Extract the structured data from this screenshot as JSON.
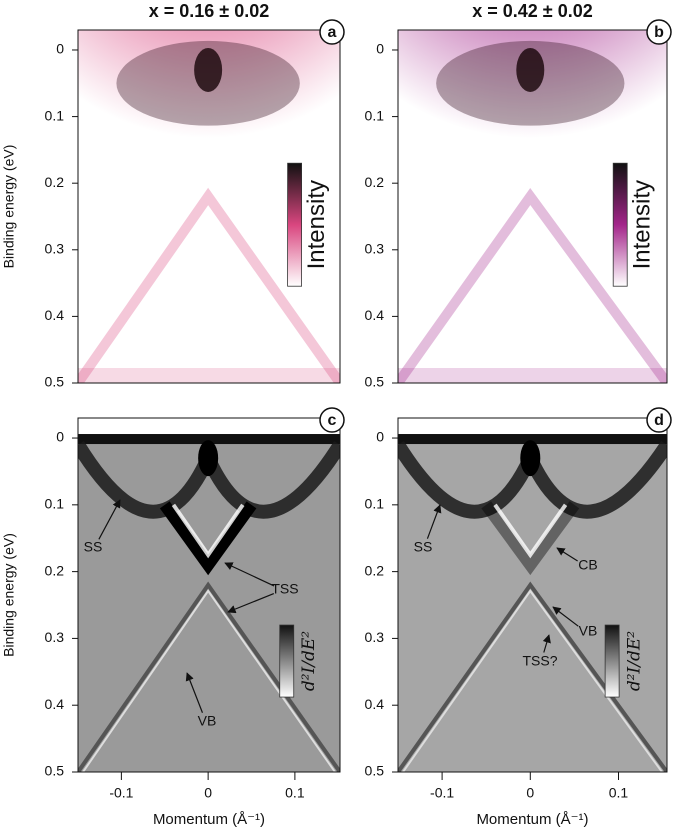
{
  "chart_data": [
    {
      "type": "image",
      "panel_label": "a",
      "title": "x = 0.16 ± 0.02",
      "ylabel": "Binding energy (eV)",
      "color": "#d9467f",
      "colorbar_label": "Intensity",
      "xlim": [
        -0.15,
        0.152
      ],
      "ylim": [
        0.5,
        -0.03
      ],
      "yticks": [
        0,
        0.1,
        0.2,
        0.3,
        0.4,
        0.5
      ],
      "annotations": []
    },
    {
      "type": "image",
      "panel_label": "b",
      "title": "x = 0.42 ± 0.02",
      "color": "#a3258a",
      "colorbar_label": "Intensity",
      "xlim": [
        -0.15,
        0.155
      ],
      "ylim": [
        0.5,
        -0.03
      ],
      "yticks": [
        0,
        0.1,
        0.2,
        0.3,
        0.4,
        0.5
      ],
      "annotations": []
    },
    {
      "type": "derivative",
      "panel_label": "c",
      "ylabel": "Binding energy (eV)",
      "xlabel": "Momentum (Å⁻¹)",
      "color": "#9a9a9a",
      "colorbar_label": "d²I/dE²",
      "xlim": [
        -0.15,
        0.152
      ],
      "ylim": [
        0.5,
        -0.03
      ],
      "xticks": [
        -0.1,
        0,
        0.1
      ],
      "yticks": [
        0,
        0.1,
        0.2,
        0.3,
        0.4,
        0.5
      ],
      "annotations": [
        "SS",
        "TSS",
        "VB"
      ]
    },
    {
      "type": "derivative",
      "panel_label": "d",
      "xlabel": "Momentum (Å⁻¹)",
      "color": "#a6a6a6",
      "colorbar_label": "d²I/dE²",
      "xlim": [
        -0.15,
        0.155
      ],
      "ylim": [
        0.5,
        -0.03
      ],
      "xticks": [
        -0.1,
        0,
        0.1
      ],
      "yticks": [
        0,
        0.1,
        0.2,
        0.3,
        0.4,
        0.5
      ],
      "annotations": [
        "SS",
        "CB",
        "VB",
        "TSS?"
      ]
    }
  ]
}
